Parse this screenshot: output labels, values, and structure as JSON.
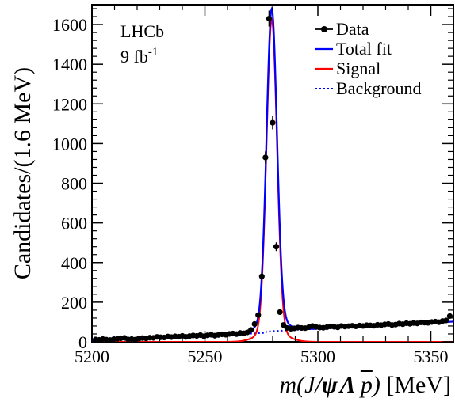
{
  "chart_data": {
    "type": "scatter",
    "annotation_lines": [
      "LHCb",
      "9 fb"
    ],
    "annotation_sup": "-1",
    "xlabel": {
      "prefix": "m(",
      "J": "J",
      "slash": "/",
      "psi": "ψ",
      "Lambda": "Λ",
      "pbar": "p",
      "suffix": ")",
      "unit": " [MeV]"
    },
    "ylabel": "Candidates/(1.6 MeV)",
    "xlim": [
      5200,
      5360
    ],
    "ylim": [
      0,
      1700
    ],
    "xticks": [
      5200,
      5250,
      5300,
      5350
    ],
    "yticks": [
      0,
      200,
      400,
      600,
      800,
      1000,
      1200,
      1400,
      1600
    ],
    "xtick_labels": [
      "5200",
      "5250",
      "5300",
      "5350"
    ],
    "ytick_labels": [
      "0",
      "200",
      "400",
      "600",
      "800",
      "1000",
      "1200",
      "1400",
      "1600"
    ],
    "legend": [
      {
        "label": "Data",
        "style": "marker-line",
        "color": "#000000"
      },
      {
        "label": "Total fit",
        "style": "solid",
        "color": "#0000ff"
      },
      {
        "label": "Signal",
        "style": "solid",
        "color": "#ff0000"
      },
      {
        "label": "Background",
        "style": "dotted",
        "color": "#0000ff"
      }
    ],
    "legend_position": "top-right",
    "series": [
      {
        "name": "Data",
        "color": "#000000",
        "x": [
          5201.6,
          5203.2,
          5204.8,
          5206.4,
          5208.0,
          5209.6,
          5211.2,
          5212.8,
          5214.4,
          5216.0,
          5217.6,
          5219.2,
          5220.8,
          5222.4,
          5224.0,
          5225.6,
          5227.2,
          5228.8,
          5230.4,
          5232.0,
          5233.6,
          5235.2,
          5236.8,
          5238.4,
          5240.0,
          5241.6,
          5243.2,
          5244.8,
          5246.4,
          5248.0,
          5249.6,
          5251.2,
          5252.8,
          5254.4,
          5256.0,
          5257.6,
          5259.2,
          5260.8,
          5262.4,
          5264.0,
          5265.6,
          5267.2,
          5268.8,
          5270.4,
          5272.0,
          5273.6,
          5275.2,
          5276.8,
          5278.4,
          5280.0,
          5281.6,
          5283.2,
          5284.8,
          5286.4,
          5288.0,
          5289.6,
          5291.2,
          5292.8,
          5294.4,
          5296.0,
          5297.6,
          5299.2,
          5300.8,
          5302.4,
          5304.0,
          5305.6,
          5307.2,
          5308.8,
          5310.4,
          5312.0,
          5313.6,
          5315.2,
          5316.8,
          5318.4,
          5320.0,
          5321.6,
          5323.2,
          5324.8,
          5326.4,
          5328.0,
          5329.6,
          5331.2,
          5332.8,
          5334.4,
          5336.0,
          5337.6,
          5339.2,
          5340.8,
          5342.4,
          5344.0,
          5345.6,
          5347.2,
          5348.8,
          5350.4,
          5352.0,
          5353.6,
          5355.2,
          5356.8,
          5358.4
        ],
        "y": [
          12,
          10,
          14,
          11,
          9,
          13,
          15,
          18,
          20,
          12,
          14,
          11,
          16,
          19,
          17,
          21,
          20,
          25,
          23,
          22,
          27,
          24,
          28,
          26,
          30,
          25,
          29,
          32,
          30,
          34,
          28,
          33,
          36,
          31,
          35,
          38,
          36,
          40,
          42,
          39,
          45,
          43,
          48,
          60,
          90,
          135,
          330,
          930,
          1630,
          1105,
          480,
          150,
          85,
          70,
          66,
          68,
          72,
          70,
          69,
          74,
          80,
          75,
          72,
          71,
          74,
          78,
          76,
          73,
          80,
          77,
          79,
          81,
          78,
          82,
          80,
          84,
          83,
          81,
          86,
          84,
          88,
          90,
          85,
          87,
          92,
          89,
          94,
          91,
          95,
          93,
          98,
          97,
          96,
          100,
          102,
          99,
          105,
          108,
          130
        ]
      }
    ],
    "curves": {
      "peak_mean": 5279.6,
      "peak_sigma": 2.3,
      "peak_height": 1570,
      "background_at_5200": 6,
      "background_at_5360": 102
    }
  }
}
